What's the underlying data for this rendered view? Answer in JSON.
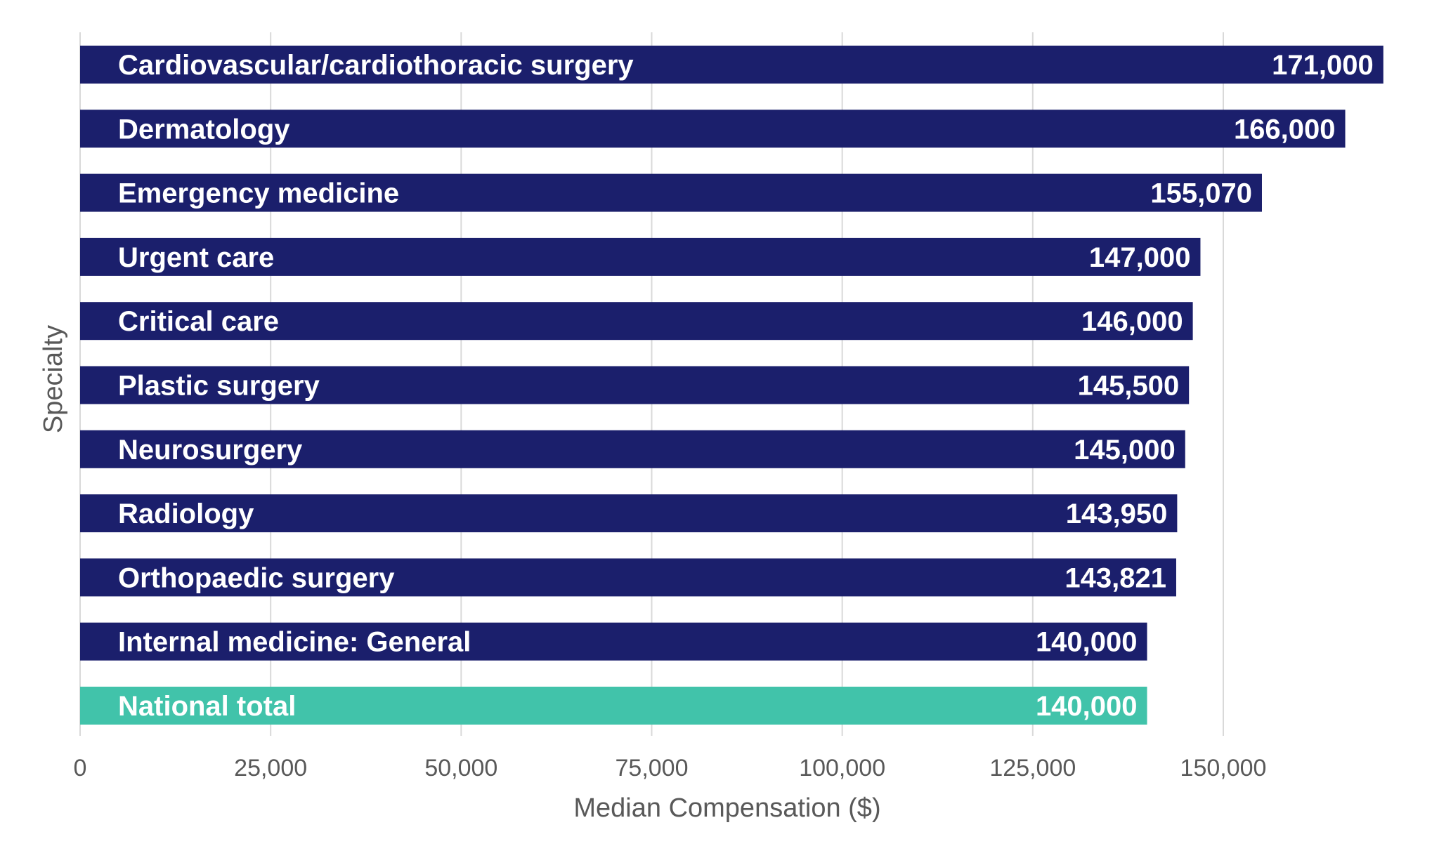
{
  "chart_data": {
    "type": "bar",
    "orientation": "horizontal",
    "xlabel": "Median Compensation ($)",
    "ylabel": "Specialty",
    "xlim": [
      0,
      170000
    ],
    "xticks": [
      0,
      25000,
      50000,
      75000,
      100000,
      125000,
      150000
    ],
    "xtick_labels": [
      "0",
      "25,000",
      "50,000",
      "75,000",
      "100,000",
      "125,000",
      "150,000"
    ],
    "grid": "vertical",
    "categories": [
      "Cardiovascular/cardiothoracic surgery",
      "Dermatology",
      "Emergency medicine",
      "Urgent care",
      "Critical care",
      "Plastic surgery",
      "Neurosurgery",
      "Radiology",
      "Orthopaedic surgery",
      "Internal medicine: General",
      "National total"
    ],
    "values": [
      171000,
      166000,
      155070,
      147000,
      146000,
      145500,
      145000,
      143950,
      143821,
      140000,
      140000
    ],
    "value_labels": [
      "171,000",
      "166,000",
      "155,070",
      "147,000",
      "146,000",
      "145,500",
      "145,000",
      "143,950",
      "143,821",
      "140,000",
      "140,000"
    ],
    "highlight": [
      "National total"
    ],
    "colors": {
      "bar": "#1b1f6c",
      "highlight": "#41c3aa",
      "grid": "#d9d9d9",
      "axis_text": "#595959",
      "bar_text": "#ffffff"
    }
  }
}
